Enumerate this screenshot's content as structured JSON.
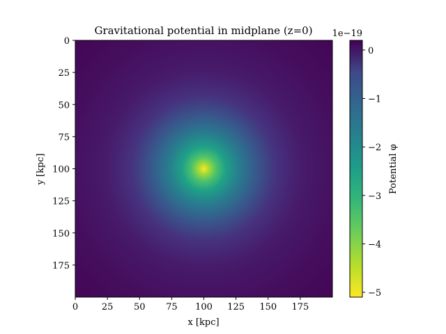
{
  "chart_data": {
    "type": "heatmap",
    "title": "Gravitational potential in midplane (z=0)",
    "xlabel": "x [kpc]",
    "ylabel": "y [kpc]",
    "xlim": [
      0,
      200
    ],
    "ylim": [
      200,
      0
    ],
    "x_ticks": [
      0,
      25,
      50,
      75,
      100,
      125,
      150,
      175
    ],
    "y_ticks": [
      0,
      25,
      50,
      75,
      100,
      125,
      150,
      175
    ],
    "center": [
      100,
      100
    ],
    "min_value": -5.1e-19,
    "max_value": 0,
    "colormap": "viridis_r",
    "grid": false,
    "colorbar": {
      "label": "Potential φ",
      "offset_text": "1e−19",
      "vmin": -5.1,
      "vmax": 0.2,
      "ticks": [
        0,
        -1,
        -2,
        -3,
        -4,
        -5
      ],
      "tick_labels": [
        "0",
        "−1",
        "−2",
        "−3",
        "−4",
        "−5"
      ]
    }
  }
}
